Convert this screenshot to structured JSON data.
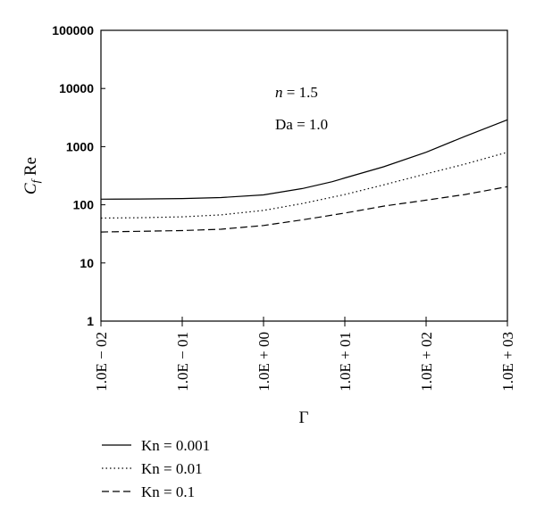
{
  "chart_data": {
    "type": "line",
    "xscale": "log",
    "yscale": "log",
    "xlim": [
      0.01,
      1000
    ],
    "ylim": [
      1,
      100000
    ],
    "x_ticks": [
      0.01,
      0.1,
      1,
      10,
      100,
      1000
    ],
    "x_tick_labels": [
      "1.0E − 02",
      "1.0E − 01",
      "1.0E + 00",
      "1.0E + 01",
      "1.0E + 02",
      "1.0E + 03"
    ],
    "y_ticks": [
      1,
      10,
      100,
      1000,
      10000,
      100000
    ],
    "y_tick_labels": [
      "1",
      "10",
      "100",
      "1000",
      "10000",
      "100000"
    ],
    "xlabel": "Γ",
    "ylabel_main": "C",
    "ylabel_sub": "f",
    "ylabel_rest": " Re",
    "annotations": [
      {
        "italic": "n",
        "text": " = 1.5"
      },
      {
        "italic": "",
        "text": "Da = 1.0"
      }
    ],
    "legend_position": "bottom-left",
    "series": [
      {
        "name": "Kn = 0.001",
        "dash": "solid",
        "x": [
          0.01,
          0.03,
          0.1,
          0.3,
          1,
          3,
          7,
          10,
          30,
          100,
          300,
          1000
        ],
        "y": [
          125,
          126,
          128,
          133,
          148,
          190,
          250,
          290,
          450,
          800,
          1500,
          2900
        ]
      },
      {
        "name": "Kn = 0.01",
        "dash": "dotted",
        "x": [
          0.01,
          0.03,
          0.1,
          0.3,
          1,
          3,
          10,
          30,
          100,
          300,
          1000
        ],
        "y": [
          59,
          60,
          62,
          67,
          80,
          105,
          150,
          220,
          340,
          500,
          800
        ]
      },
      {
        "name": "Kn = 0.1",
        "dash": "dashed",
        "x": [
          0.01,
          0.03,
          0.1,
          0.3,
          1,
          3,
          10,
          30,
          100,
          300,
          1000
        ],
        "y": [
          34,
          35,
          36,
          38,
          44,
          55,
          72,
          95,
          120,
          150,
          205
        ]
      }
    ]
  }
}
